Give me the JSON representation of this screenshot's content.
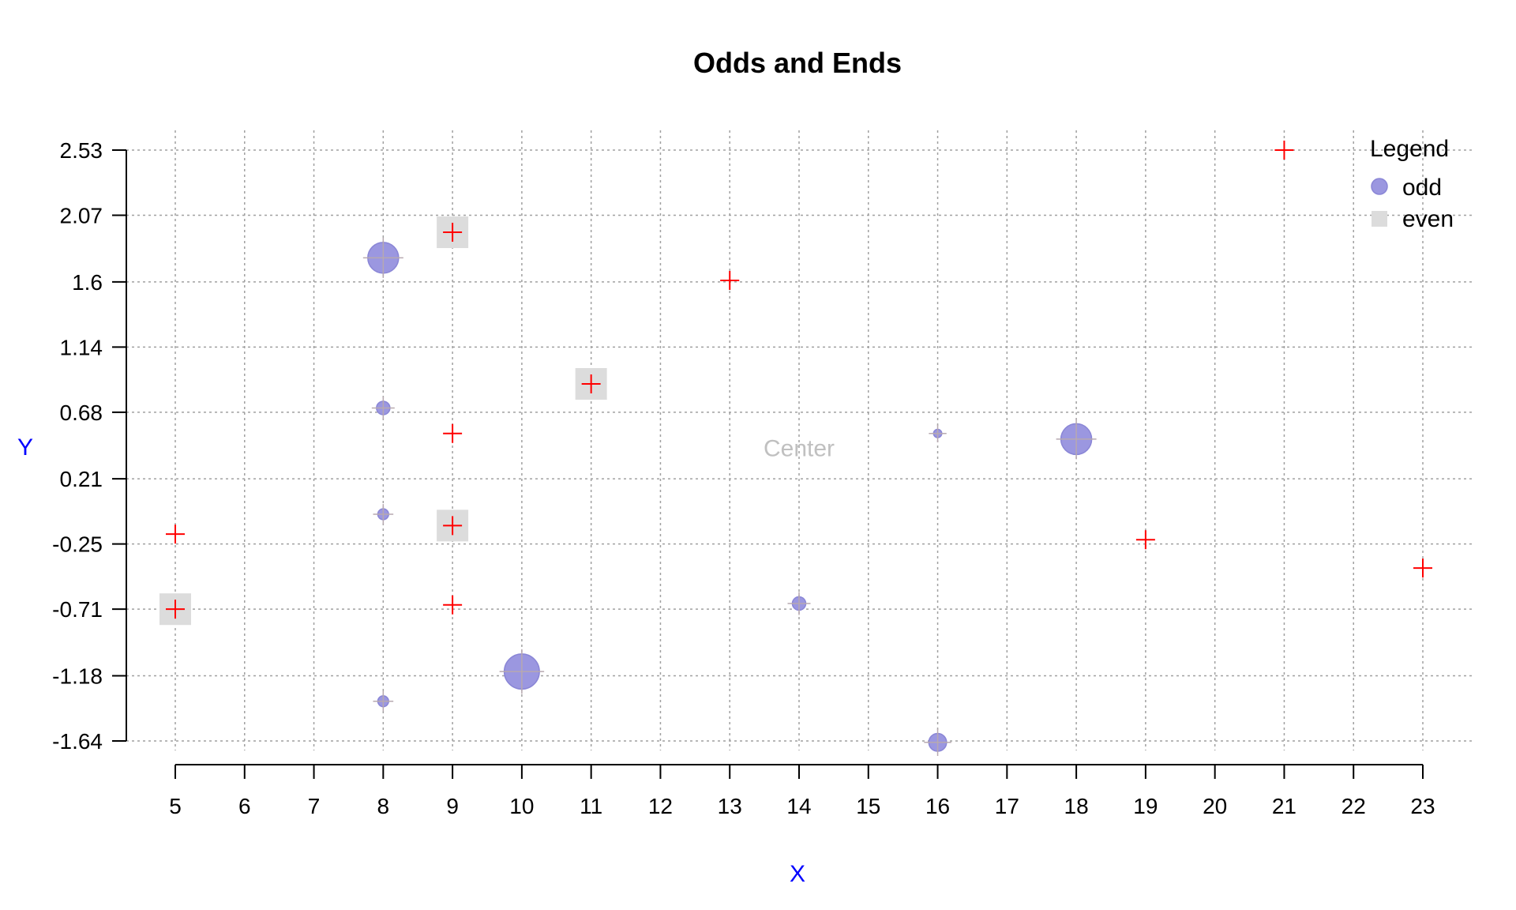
{
  "chart_data": {
    "type": "scatter",
    "title": "Odds and Ends",
    "xlabel": "X",
    "ylabel": "Y",
    "xlim": [
      5,
      23
    ],
    "ylim": [
      -1.64,
      2.53
    ],
    "x_ticks": [
      "5",
      "6",
      "7",
      "8",
      "9",
      "10",
      "11",
      "12",
      "13",
      "14",
      "15",
      "16",
      "17",
      "18",
      "19",
      "20",
      "21",
      "22",
      "23"
    ],
    "y_ticks": [
      "-1.64",
      "-1.18",
      "-0.71",
      "-0.25",
      "0.21",
      "0.68",
      "1.14",
      "1.6",
      "2.07",
      "2.53"
    ],
    "y_tick_values": [
      -1.64,
      -1.18,
      -0.71,
      -0.25,
      0.21,
      0.68,
      1.14,
      1.6,
      2.07,
      2.53
    ],
    "grid": true,
    "legend": {
      "title": "Legend",
      "position": "top-right",
      "entries": [
        {
          "label": "odd",
          "marker": "circle",
          "color": "#9b97e0"
        },
        {
          "label": "even",
          "marker": "square",
          "color": "#dcdcdc"
        }
      ]
    },
    "annotation": {
      "text": "Center",
      "x": 14,
      "y": 0.43,
      "color": "#c0c0c0"
    },
    "colors": {
      "axis_label": "#0000ff",
      "cross": "#ff0000",
      "odd_fill": "#9b97e0",
      "odd_stroke": "#8a86d6",
      "even_fill": "#dcdcdc",
      "grid": "#a0a0a0"
    },
    "series": [
      {
        "name": "odd",
        "marker": "circle",
        "points": [
          {
            "x": 8,
            "y": 1.77,
            "size": 3
          },
          {
            "x": 8,
            "y": 0.71,
            "size": 1
          },
          {
            "x": 8,
            "y": -0.04,
            "size": 0.7
          },
          {
            "x": 8,
            "y": -1.36,
            "size": 0.7
          },
          {
            "x": 10,
            "y": -1.15,
            "size": 3.5
          },
          {
            "x": 14,
            "y": -0.67,
            "size": 1
          },
          {
            "x": 16,
            "y": 0.53,
            "size": 0.4
          },
          {
            "x": 16,
            "y": -1.65,
            "size": 1.5
          },
          {
            "x": 18,
            "y": 0.49,
            "size": 3
          }
        ]
      },
      {
        "name": "even",
        "marker": "square",
        "points": [
          {
            "x": 5,
            "y": -0.71
          },
          {
            "x": 9,
            "y": 1.95
          },
          {
            "x": 9,
            "y": -0.12
          },
          {
            "x": 11,
            "y": 0.88
          }
        ]
      },
      {
        "marker": "cross",
        "points": [
          {
            "x": 5,
            "y": -0.18
          },
          {
            "x": 5,
            "y": -0.71
          },
          {
            "x": 9,
            "y": 1.95
          },
          {
            "x": 9,
            "y": 0.53
          },
          {
            "x": 9,
            "y": -0.12
          },
          {
            "x": 9,
            "y": -0.68
          },
          {
            "x": 11,
            "y": 0.88
          },
          {
            "x": 13,
            "y": 1.61
          },
          {
            "x": 19,
            "y": -0.22
          },
          {
            "x": 21,
            "y": 2.53
          },
          {
            "x": 23,
            "y": -0.42
          }
        ]
      }
    ]
  }
}
